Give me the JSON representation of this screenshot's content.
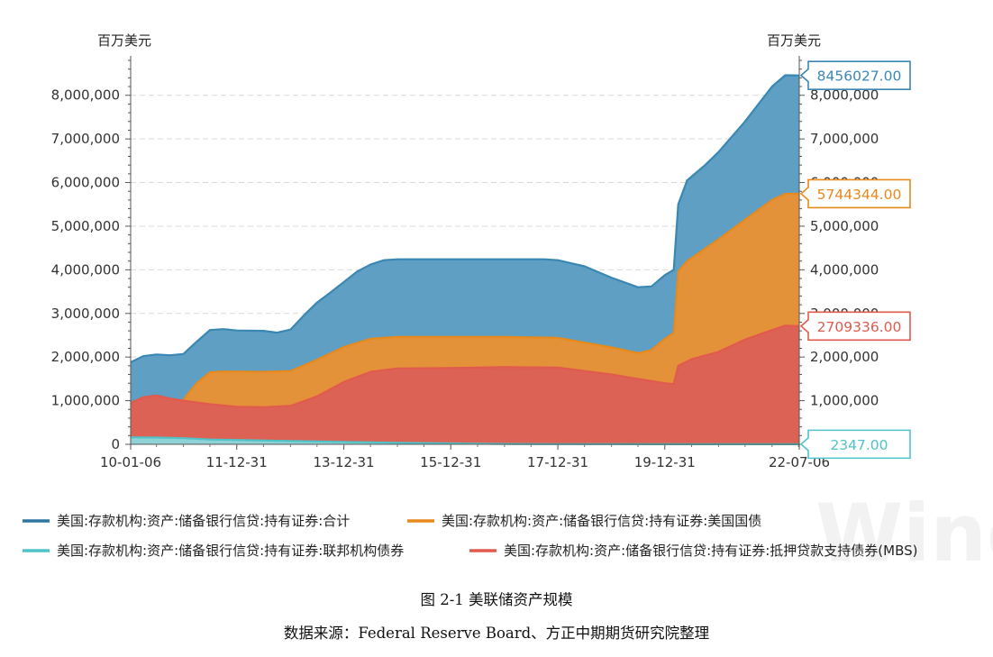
{
  "chart_data": {
    "type": "area",
    "left_axis_unit": "百万美元",
    "right_axis_unit": "百万美元",
    "ylim": [
      0,
      8800000
    ],
    "yticks": [
      0,
      1000000,
      2000000,
      3000000,
      4000000,
      5000000,
      6000000,
      7000000,
      8000000
    ],
    "ytick_labels": [
      "0",
      "1,000,000",
      "2,000,000",
      "3,000,000",
      "4,000,000",
      "5,000,000",
      "6,000,000",
      "7,000,000",
      "8,000,000"
    ],
    "xlim": [
      "2010-01-06",
      "2022-07-06"
    ],
    "xticks": [
      {
        "date": "2010-01-06",
        "label": "10-01-06"
      },
      {
        "date": "2011-12-31",
        "label": "11-12-31"
      },
      {
        "date": "2013-12-31",
        "label": "13-12-31"
      },
      {
        "date": "2015-12-31",
        "label": "15-12-31"
      },
      {
        "date": "2017-12-31",
        "label": "17-12-31"
      },
      {
        "date": "2019-12-31",
        "label": "19-12-31"
      },
      {
        "date": "2022-07-06",
        "label": "22-07-06"
      }
    ],
    "grid": "horizontal-dashed",
    "legend_position": "bottom",
    "series": [
      {
        "name": "美国:存款机构:资产:储备银行信贷:持有证券:合计",
        "color": "#3a87b4",
        "fill": "#5f9fc3",
        "last_value": 8456027,
        "last_label": "8456027.00",
        "points": [
          [
            "2010-01-06",
            1880000
          ],
          [
            "2010-04-01",
            2020000
          ],
          [
            "2010-07-01",
            2060000
          ],
          [
            "2010-10-01",
            2040000
          ],
          [
            "2011-01-01",
            2070000
          ],
          [
            "2011-04-01",
            2350000
          ],
          [
            "2011-07-01",
            2620000
          ],
          [
            "2011-10-01",
            2640000
          ],
          [
            "2012-01-01",
            2610000
          ],
          [
            "2012-07-01",
            2600000
          ],
          [
            "2012-10-01",
            2560000
          ],
          [
            "2013-01-01",
            2630000
          ],
          [
            "2013-04-01",
            2950000
          ],
          [
            "2013-07-01",
            3250000
          ],
          [
            "2013-10-01",
            3480000
          ],
          [
            "2014-01-01",
            3720000
          ],
          [
            "2014-04-01",
            3960000
          ],
          [
            "2014-07-01",
            4120000
          ],
          [
            "2014-10-01",
            4220000
          ],
          [
            "2015-01-01",
            4240000
          ],
          [
            "2016-01-01",
            4240000
          ],
          [
            "2017-01-01",
            4240000
          ],
          [
            "2017-10-01",
            4240000
          ],
          [
            "2018-01-01",
            4220000
          ],
          [
            "2018-07-01",
            4080000
          ],
          [
            "2019-01-01",
            3820000
          ],
          [
            "2019-07-01",
            3600000
          ],
          [
            "2019-10-01",
            3620000
          ],
          [
            "2020-01-01",
            3880000
          ],
          [
            "2020-03-01",
            4000000
          ],
          [
            "2020-04-01",
            5500000
          ],
          [
            "2020-06-01",
            6050000
          ],
          [
            "2020-10-01",
            6400000
          ],
          [
            "2021-01-01",
            6700000
          ],
          [
            "2021-07-01",
            7400000
          ],
          [
            "2022-01-01",
            8200000
          ],
          [
            "2022-04-01",
            8460000
          ],
          [
            "2022-07-06",
            8456027
          ]
        ]
      },
      {
        "name": "美国:存款机构:资产:储备银行信贷:持有证券:美国国债",
        "color": "#e8891c",
        "fill": "#e4923a",
        "last_value": 5744344,
        "last_label": "5744344.00",
        "points": [
          [
            "2010-01-06",
            776000
          ],
          [
            "2010-07-01",
            777000
          ],
          [
            "2010-10-01",
            800000
          ],
          [
            "2010-11-01",
            850000
          ],
          [
            "2011-01-01",
            1020000
          ],
          [
            "2011-04-01",
            1400000
          ],
          [
            "2011-07-01",
            1650000
          ],
          [
            "2011-10-01",
            1670000
          ],
          [
            "2012-07-01",
            1660000
          ],
          [
            "2013-01-01",
            1680000
          ],
          [
            "2013-07-01",
            1940000
          ],
          [
            "2014-01-01",
            2230000
          ],
          [
            "2014-07-01",
            2420000
          ],
          [
            "2015-01-01",
            2460000
          ],
          [
            "2016-01-01",
            2460000
          ],
          [
            "2017-01-01",
            2460000
          ],
          [
            "2018-01-01",
            2440000
          ],
          [
            "2018-07-01",
            2330000
          ],
          [
            "2019-01-01",
            2220000
          ],
          [
            "2019-07-01",
            2090000
          ],
          [
            "2019-10-01",
            2160000
          ],
          [
            "2020-01-01",
            2420000
          ],
          [
            "2020-03-01",
            2550000
          ],
          [
            "2020-04-01",
            3960000
          ],
          [
            "2020-06-01",
            4200000
          ],
          [
            "2021-01-01",
            4700000
          ],
          [
            "2021-07-01",
            5150000
          ],
          [
            "2022-01-01",
            5600000
          ],
          [
            "2022-04-01",
            5740000
          ],
          [
            "2022-07-06",
            5744344
          ]
        ]
      },
      {
        "name": "美国:存款机构:资产:储备银行信贷:持有证券:抵押贷款支持债券(MBS)",
        "color": "#e05a4e",
        "fill": "#dd6256",
        "last_value": 2709336,
        "last_label": "2709336.00",
        "points": [
          [
            "2010-01-06",
            950000
          ],
          [
            "2010-04-01",
            1080000
          ],
          [
            "2010-07-01",
            1120000
          ],
          [
            "2010-10-01",
            1050000
          ],
          [
            "2011-01-01",
            1000000
          ],
          [
            "2011-07-01",
            920000
          ],
          [
            "2012-01-01",
            860000
          ],
          [
            "2012-07-01",
            850000
          ],
          [
            "2013-01-01",
            880000
          ],
          [
            "2013-07-01",
            1100000
          ],
          [
            "2014-01-01",
            1430000
          ],
          [
            "2014-07-01",
            1660000
          ],
          [
            "2015-01-01",
            1740000
          ],
          [
            "2016-01-01",
            1750000
          ],
          [
            "2017-01-01",
            1770000
          ],
          [
            "2018-01-01",
            1760000
          ],
          [
            "2018-07-01",
            1680000
          ],
          [
            "2019-01-01",
            1600000
          ],
          [
            "2019-07-01",
            1500000
          ],
          [
            "2020-01-01",
            1400000
          ],
          [
            "2020-03-01",
            1380000
          ],
          [
            "2020-04-01",
            1800000
          ],
          [
            "2020-07-01",
            1950000
          ],
          [
            "2021-01-01",
            2120000
          ],
          [
            "2021-07-01",
            2400000
          ],
          [
            "2022-01-01",
            2620000
          ],
          [
            "2022-04-01",
            2720000
          ],
          [
            "2022-07-06",
            2709336
          ]
        ]
      },
      {
        "name": "美国:存款机构:资产:储备银行信贷:持有证券:联邦机构债券",
        "color": "#4fc3c7",
        "fill": "#8fd3d6",
        "last_value": 2347,
        "last_label": "2347.00",
        "points": [
          [
            "2010-01-06",
            160000
          ],
          [
            "2010-07-01",
            155000
          ],
          [
            "2011-01-01",
            140000
          ],
          [
            "2011-07-01",
            110000
          ],
          [
            "2012-01-01",
            100000
          ],
          [
            "2013-01-01",
            75000
          ],
          [
            "2014-01-01",
            55000
          ],
          [
            "2015-01-01",
            35000
          ],
          [
            "2016-01-01",
            20000
          ],
          [
            "2017-01-01",
            8000
          ],
          [
            "2018-01-01",
            4000
          ],
          [
            "2020-01-01",
            2400
          ],
          [
            "2022-07-06",
            2347
          ]
        ]
      }
    ]
  },
  "legend": [
    {
      "label": "美国:存款机构:资产:储备银行信贷:持有证券:合计",
      "color": "#2f76a0"
    },
    {
      "label": "美国:存款机构:资产:储备银行信贷:持有证券:美国国债",
      "color": "#e8891c"
    },
    {
      "label": "美国:存款机构:资产:储备银行信贷:持有证券:联邦机构债券",
      "color": "#4fc3c7"
    },
    {
      "label": "美国:存款机构:资产:储备银行信贷:持有证券:抵押贷款支持债券(MBS)",
      "color": "#e05a4e"
    }
  ],
  "watermark": "Wind",
  "figure_caption": "图 2-1 美联储资产规模",
  "source_caption": "数据来源：Federal Reserve Board、方正中期期货研究院整理"
}
